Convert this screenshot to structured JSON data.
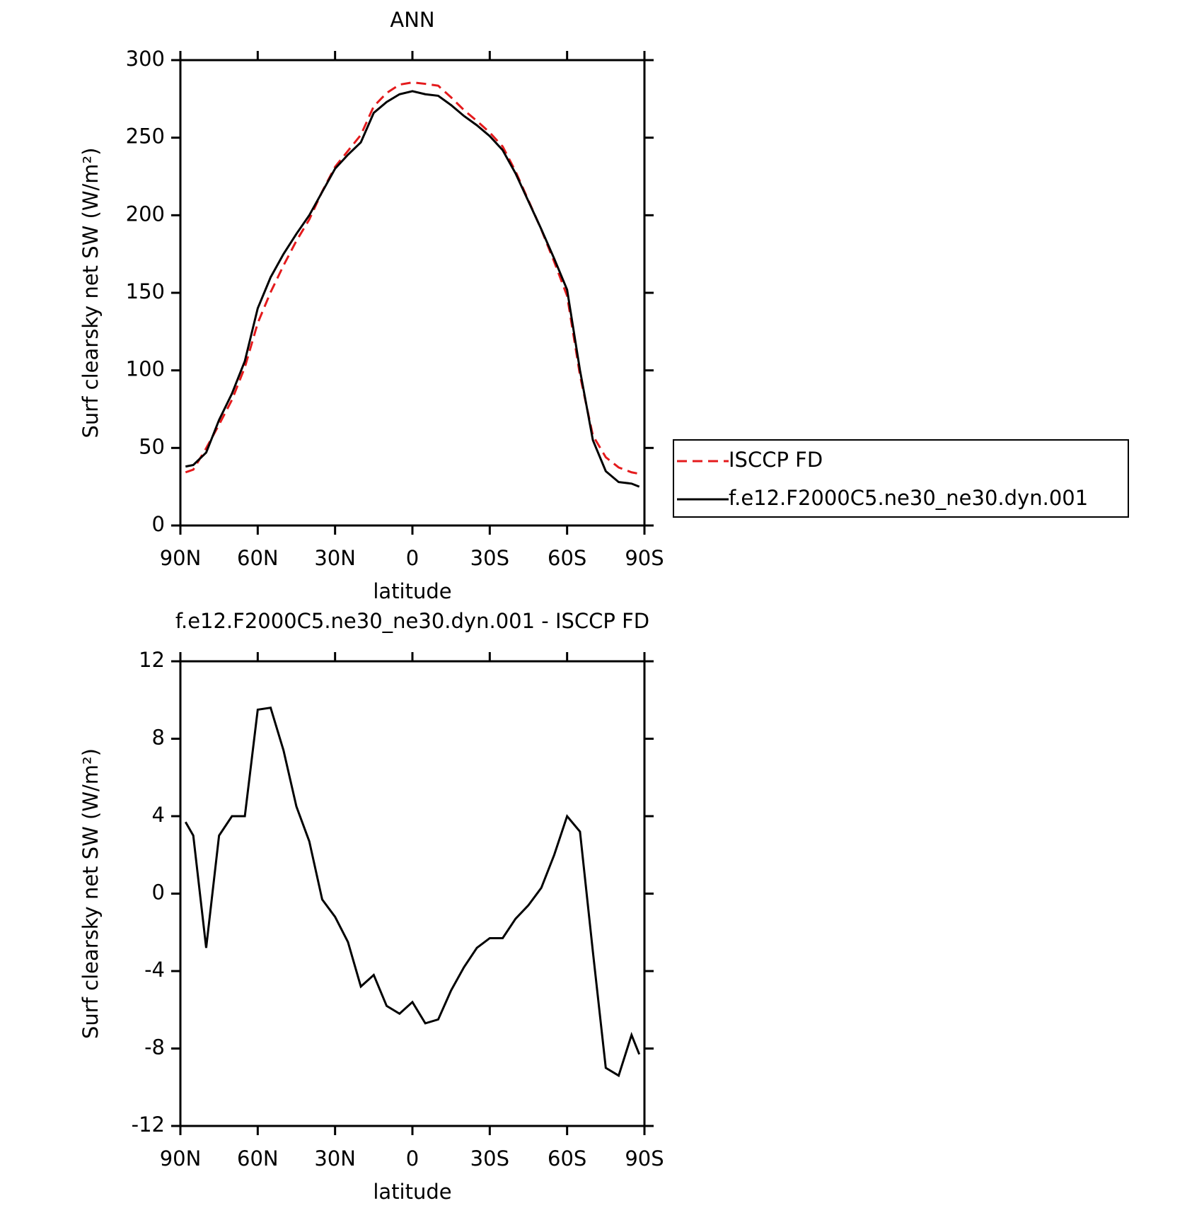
{
  "chart_data": [
    {
      "type": "line",
      "title": "ANN",
      "xlabel": "latitude",
      "ylabel": "Surf clearsky net SW (W/m²)",
      "xlim": [
        90,
        -90
      ],
      "xticks": [
        {
          "value": 90,
          "label": "90N"
        },
        {
          "value": 60,
          "label": "60N"
        },
        {
          "value": 30,
          "label": "30N"
        },
        0,
        {
          "value": -30,
          "label": "30S"
        },
        {
          "value": -60,
          "label": "60S"
        },
        {
          "value": -90,
          "label": "90S"
        }
      ],
      "ylim": [
        0,
        300
      ],
      "yticks": [
        0,
        50,
        100,
        150,
        200,
        250,
        300
      ],
      "x": [
        88,
        85,
        80,
        75,
        70,
        65,
        60,
        55,
        50,
        45,
        40,
        35,
        30,
        25,
        20,
        15,
        10,
        5,
        0,
        -5,
        -10,
        -15,
        -20,
        -25,
        -30,
        -35,
        -40,
        -45,
        -50,
        -55,
        -60,
        -65,
        -70,
        -75,
        -80,
        -85,
        -88
      ],
      "series": [
        {
          "name": "ISCCP FD",
          "color": "#e41a1c",
          "dashed": true,
          "values": [
            34.3,
            36,
            49.8,
            65,
            81,
            102,
            130.5,
            150.4,
            167.6,
            183.5,
            197.3,
            215.3,
            231.2,
            241.5,
            251.8,
            270.2,
            278.8,
            284.2,
            285.6,
            284.7,
            283.5,
            276,
            267.8,
            260.8,
            253.3,
            244.3,
            228.3,
            209.6,
            190.7,
            170,
            148,
            96.8,
            58,
            44,
            37.4,
            34.3,
            33.3
          ]
        },
        {
          "name": "f.e12.F2000C5.ne30_ne30.dyn.001",
          "color": "#000000",
          "dashed": false,
          "values": [
            38,
            39,
            47,
            68,
            85,
            106,
            140,
            160,
            175,
            188,
            200,
            215,
            230,
            239,
            247,
            266,
            273,
            278,
            280,
            278,
            277,
            271,
            264,
            258,
            251,
            242,
            227,
            209,
            191,
            172,
            152,
            100,
            55,
            35,
            28,
            27,
            25
          ]
        }
      ]
    },
    {
      "type": "line",
      "title": "f.e12.F2000C5.ne30_ne30.dyn.001 - ISCCP FD",
      "xlabel": "latitude",
      "ylabel": "Surf clearsky net SW (W/m²)",
      "xlim": [
        90,
        -90
      ],
      "xticks": [
        {
          "value": 90,
          "label": "90N"
        },
        {
          "value": 60,
          "label": "60N"
        },
        {
          "value": 30,
          "label": "30N"
        },
        0,
        {
          "value": -30,
          "label": "30S"
        },
        {
          "value": -60,
          "label": "60S"
        },
        {
          "value": -90,
          "label": "90S"
        }
      ],
      "ylim": [
        -12,
        12
      ],
      "yticks": [
        -12,
        -8,
        -4,
        0,
        4,
        8,
        12
      ],
      "x": [
        88,
        85,
        80,
        75,
        70,
        65,
        60,
        55,
        50,
        45,
        40,
        35,
        30,
        25,
        20,
        15,
        10,
        5,
        0,
        -5,
        -10,
        -15,
        -20,
        -25,
        -30,
        -35,
        -40,
        -45,
        -50,
        -55,
        -60,
        -65,
        -70,
        -75,
        -80,
        -85,
        -88
      ],
      "color": "#000000",
      "values": [
        3.7,
        3.0,
        -2.8,
        3.0,
        4.0,
        4.0,
        9.5,
        9.6,
        7.4,
        4.5,
        2.7,
        -0.3,
        -1.2,
        -2.5,
        -4.8,
        -4.2,
        -5.8,
        -6.2,
        -5.6,
        -6.7,
        -6.5,
        -5.0,
        -3.8,
        -2.8,
        -2.3,
        -2.3,
        -1.3,
        -0.6,
        0.3,
        2.0,
        4.0,
        3.2,
        -3.0,
        -9.0,
        -9.4,
        -7.3,
        -8.3
      ]
    }
  ]
}
